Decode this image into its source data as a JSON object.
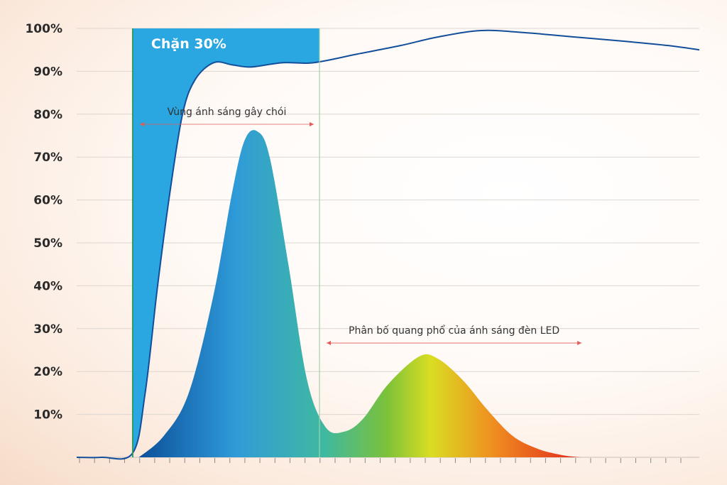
{
  "chart_data": {
    "type": "area",
    "title": "",
    "xlabel": "",
    "ylabel": "",
    "ylim": [
      0,
      100
    ],
    "yticks": [
      "10%",
      "20%",
      "30%",
      "40%",
      "50%",
      "60%",
      "70%",
      "80%",
      "90%",
      "100%"
    ],
    "grid": true,
    "x_ticks_count": 40,
    "blocked_region": {
      "label": "Chặn 30%",
      "x_range": [
        0.09,
        0.39
      ],
      "color": "#2aa6e0"
    },
    "transmission_curve": {
      "x": [
        0.0,
        0.04,
        0.09,
        0.11,
        0.13,
        0.15,
        0.17,
        0.19,
        0.22,
        0.25,
        0.28,
        0.33,
        0.38,
        0.45,
        0.52,
        0.58,
        0.65,
        0.72,
        0.8,
        0.88,
        0.95,
        1.0
      ],
      "y": [
        0,
        0,
        1,
        15,
        40,
        62,
        80,
        88,
        92,
        91.5,
        91,
        92,
        92,
        94,
        96,
        98,
        99.5,
        99,
        98,
        97,
        96,
        95
      ],
      "color": "#134e9a"
    },
    "led_spectrum": {
      "x": [
        0.1,
        0.14,
        0.18,
        0.22,
        0.25,
        0.27,
        0.29,
        0.31,
        0.34,
        0.37,
        0.4,
        0.43,
        0.46,
        0.5,
        0.55,
        0.58,
        0.62,
        0.66,
        0.7,
        0.74,
        0.78,
        0.81
      ],
      "y": [
        0,
        5,
        15,
        38,
        62,
        74,
        76,
        70,
        45,
        18,
        7,
        6,
        9,
        17,
        23.5,
        23,
        18,
        11,
        5,
        2,
        0.5,
        0
      ],
      "gradient_stops": [
        {
          "offset": 0.0,
          "color": "#0c4f9a"
        },
        {
          "offset": 0.22,
          "color": "#2f9bd8"
        },
        {
          "offset": 0.42,
          "color": "#3fb9a0"
        },
        {
          "offset": 0.56,
          "color": "#7cc13a"
        },
        {
          "offset": 0.66,
          "color": "#d9dd22"
        },
        {
          "offset": 0.8,
          "color": "#ef8f20"
        },
        {
          "offset": 1.0,
          "color": "#e2261b"
        }
      ]
    },
    "annotations": [
      {
        "text": "Vùng ánh sáng gây chói",
        "x_range": [
          0.09,
          0.39
        ],
        "y": 75
      },
      {
        "text": "Phân bố quang phổ của ánh sáng đèn LED",
        "x_range": [
          0.39,
          0.82
        ],
        "y": 24
      }
    ],
    "divider_colors": {
      "left": "#2f9a66",
      "right": "#9ed3ae"
    },
    "arrow_color": "#e25a5a"
  }
}
